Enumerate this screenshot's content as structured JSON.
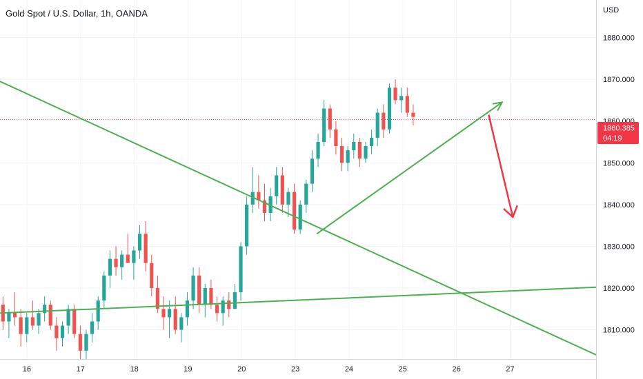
{
  "chart_title": "Gold Spot / U.S. Dollar, 1h, OANDA",
  "currency_label": "USD",
  "colors": {
    "up": "#26a69a",
    "down": "#ef5350",
    "trendline": "#4caf50",
    "projection_arrow": "#f23645",
    "price_tag": "#f23645",
    "grid": "#f0f3fa",
    "axis_line": "#d1d4dc",
    "text": "#131722"
  },
  "price_tag": {
    "price": "1860.385",
    "countdown": "04:19"
  },
  "chart_data": {
    "type": "candlestick",
    "title": "Gold Spot / U.S. Dollar, 1h, OANDA",
    "y_axis": {
      "label": "USD",
      "ticks": [
        1810,
        1820,
        1830,
        1840,
        1850,
        1860,
        1870,
        1880
      ],
      "tick_labels": [
        "1810.000",
        "1820.000",
        "1830.000",
        "1840.000",
        "1850.000",
        "1860.000",
        "1870.000",
        "1880.000"
      ],
      "range": [
        1803,
        1889
      ]
    },
    "x_axis": {
      "tick_labels": [
        "16",
        "17",
        "18",
        "19",
        "20",
        "23",
        "24",
        "25",
        "26",
        "27"
      ],
      "range": [
        0,
        11.1
      ]
    },
    "last_price": 1860.385,
    "grid": true,
    "series": [
      {
        "name": "candles",
        "ohlc": [
          [
            1816,
            1818,
            1810,
            1812
          ],
          [
            1812,
            1815,
            1808,
            1814
          ],
          [
            1814,
            1819,
            1811,
            1813
          ],
          [
            1813,
            1815,
            1806,
            1809
          ],
          [
            1809,
            1814,
            1807,
            1813
          ],
          [
            1813,
            1817,
            1810,
            1811
          ],
          [
            1811,
            1815,
            1809,
            1814
          ],
          [
            1814,
            1818,
            1812,
            1816
          ],
          [
            1816,
            1817,
            1810,
            1811
          ],
          [
            1811,
            1813,
            1805,
            1808
          ],
          [
            1808,
            1812,
            1806,
            1811
          ],
          [
            1811,
            1816,
            1809,
            1815
          ],
          [
            1815,
            1816,
            1808,
            1809
          ],
          [
            1809,
            1811,
            1803,
            1805
          ],
          [
            1805,
            1810,
            1803,
            1809
          ],
          [
            1809,
            1814,
            1807,
            1812
          ],
          [
            1812,
            1818,
            1810,
            1817
          ],
          [
            1817,
            1824,
            1815,
            1823
          ],
          [
            1823,
            1829,
            1820,
            1827
          ],
          [
            1827,
            1830,
            1823,
            1825
          ],
          [
            1825,
            1829,
            1822,
            1828
          ],
          [
            1828,
            1833,
            1826,
            1826
          ],
          [
            1826,
            1830,
            1822,
            1829
          ],
          [
            1829,
            1835,
            1827,
            1833
          ],
          [
            1833,
            1836,
            1824,
            1826
          ],
          [
            1826,
            1828,
            1818,
            1820
          ],
          [
            1820,
            1823,
            1814,
            1815
          ],
          [
            1815,
            1818,
            1810,
            1813
          ],
          [
            1813,
            1817,
            1808,
            1815
          ],
          [
            1815,
            1818,
            1809,
            1810
          ],
          [
            1810,
            1814,
            1807,
            1813
          ],
          [
            1813,
            1819,
            1811,
            1817
          ],
          [
            1817,
            1825,
            1815,
            1823
          ],
          [
            1823,
            1825,
            1814,
            1816
          ],
          [
            1816,
            1821,
            1813,
            1820
          ],
          [
            1820,
            1822,
            1815,
            1816
          ],
          [
            1816,
            1818,
            1812,
            1814
          ],
          [
            1814,
            1818,
            1811,
            1817
          ],
          [
            1817,
            1819,
            1813,
            1815
          ],
          [
            1815,
            1821,
            1815,
            1819
          ],
          [
            1819,
            1831,
            1817,
            1830
          ],
          [
            1830,
            1842,
            1828,
            1840
          ],
          [
            1840,
            1849,
            1838,
            1843
          ],
          [
            1843,
            1847,
            1839,
            1841
          ],
          [
            1841,
            1845,
            1836,
            1838
          ],
          [
            1838,
            1844,
            1836,
            1842
          ],
          [
            1842,
            1849,
            1840,
            1847
          ],
          [
            1847,
            1849,
            1838,
            1840
          ],
          [
            1840,
            1844,
            1837,
            1843
          ],
          [
            1843,
            1845,
            1833,
            1834
          ],
          [
            1834,
            1841,
            1833,
            1840
          ],
          [
            1840,
            1846,
            1838,
            1845
          ],
          [
            1845,
            1853,
            1843,
            1851
          ],
          [
            1851,
            1857,
            1849,
            1855
          ],
          [
            1855,
            1865,
            1854,
            1863
          ],
          [
            1863,
            1864,
            1856,
            1858
          ],
          [
            1858,
            1860,
            1852,
            1854
          ],
          [
            1854,
            1856,
            1848,
            1850
          ],
          [
            1850,
            1854,
            1848,
            1853
          ],
          [
            1853,
            1857,
            1851,
            1855
          ],
          [
            1855,
            1856,
            1849,
            1851
          ],
          [
            1851,
            1855,
            1850,
            1854
          ],
          [
            1854,
            1858,
            1852,
            1856
          ],
          [
            1856,
            1863,
            1854,
            1862
          ],
          [
            1862,
            1864,
            1856,
            1858
          ],
          [
            1858,
            1869,
            1857,
            1868
          ],
          [
            1868,
            1870,
            1864,
            1865
          ],
          [
            1865,
            1868,
            1862,
            1866
          ],
          [
            1866,
            1868,
            1861,
            1862
          ],
          [
            1862,
            1864,
            1859,
            1861
          ]
        ]
      },
      {
        "name": "trendlines",
        "segments": [
          {
            "from": [
              0.0,
              1869.5
            ],
            "to": [
              11.1,
              1804.0
            ]
          },
          {
            "from": [
              0.0,
              1814.0
            ],
            "to": [
              11.1,
              1820.2
            ]
          },
          {
            "from": [
              5.9,
              1833.0
            ],
            "to": [
              9.35,
              1864.5
            ]
          }
        ]
      },
      {
        "name": "projection",
        "segments": [
          {
            "from": [
              9.1,
              1861.5
            ],
            "to": [
              9.55,
              1837.0
            ]
          }
        ]
      }
    ]
  }
}
